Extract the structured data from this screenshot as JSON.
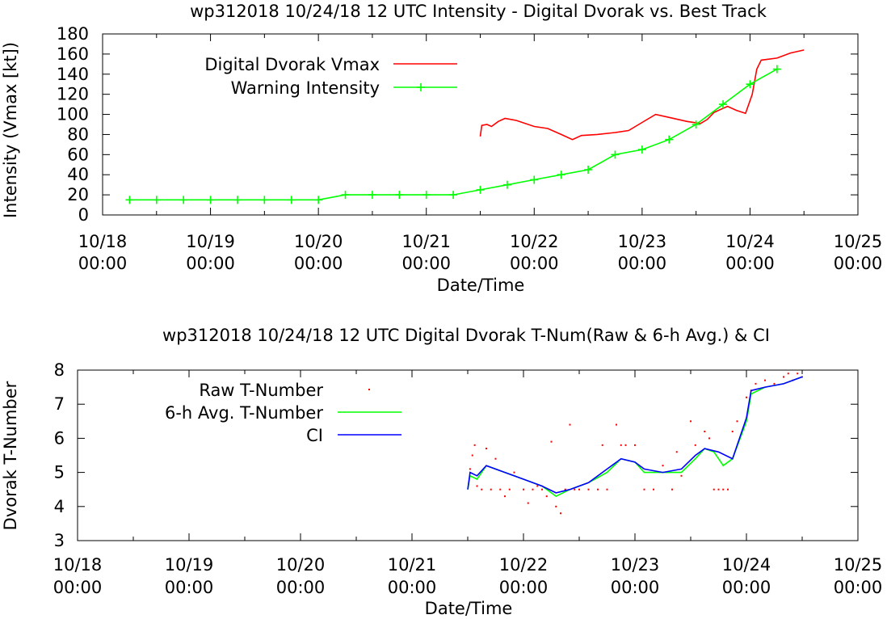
{
  "chart_data": [
    {
      "type": "line",
      "title": "wp312018 10/24/18  12 UTC Intensity - Digital Dvorak vs. Best Track",
      "xlabel": "Date/Time",
      "ylabel": "Intensity (Vmax [kt])",
      "xlim": [
        "2018-10-18T00:00",
        "2018-10-25T00:00"
      ],
      "ylim": [
        0,
        180
      ],
      "yticks": [
        0,
        20,
        40,
        60,
        80,
        100,
        120,
        140,
        160,
        180
      ],
      "xticks": [
        {
          "date": "2018-10-18T00:00",
          "line1": "10/18",
          "line2": "00:00"
        },
        {
          "date": "2018-10-19T00:00",
          "line1": "10/19",
          "line2": "00:00"
        },
        {
          "date": "2018-10-20T00:00",
          "line1": "10/20",
          "line2": "00:00"
        },
        {
          "date": "2018-10-21T00:00",
          "line1": "10/21",
          "line2": "00:00"
        },
        {
          "date": "2018-10-22T00:00",
          "line1": "10/22",
          "line2": "00:00"
        },
        {
          "date": "2018-10-23T00:00",
          "line1": "10/23",
          "line2": "00:00"
        },
        {
          "date": "2018-10-24T00:00",
          "line1": "10/24",
          "line2": "00:00"
        },
        {
          "date": "2018-10-25T00:00",
          "line1": "10/25",
          "line2": "00:00"
        }
      ],
      "grid": false,
      "legend_position": "top-left",
      "series": [
        {
          "name": "Digital Dvorak Vmax",
          "color": "#ff0000",
          "markers": false,
          "points": [
            [
              "2018-10-21T12:00",
              78
            ],
            [
              "2018-10-21T12:20",
              89
            ],
            [
              "2018-10-21T13:30",
              90
            ],
            [
              "2018-10-21T14:30",
              88
            ],
            [
              "2018-10-21T16:00",
              93
            ],
            [
              "2018-10-21T17:30",
              96
            ],
            [
              "2018-10-21T20:00",
              94
            ],
            [
              "2018-10-22T00:00",
              88
            ],
            [
              "2018-10-22T03:00",
              86
            ],
            [
              "2018-10-22T06:00",
              80
            ],
            [
              "2018-10-22T08:30",
              75
            ],
            [
              "2018-10-22T10:30",
              79
            ],
            [
              "2018-10-22T14:00",
              80
            ],
            [
              "2018-10-22T18:00",
              82
            ],
            [
              "2018-10-22T21:00",
              84
            ],
            [
              "2018-10-23T00:00",
              92
            ],
            [
              "2018-10-23T03:00",
              100
            ],
            [
              "2018-10-23T06:00",
              97
            ],
            [
              "2018-10-23T10:00",
              93
            ],
            [
              "2018-10-23T13:00",
              91
            ],
            [
              "2018-10-23T14:30",
              95
            ],
            [
              "2018-10-23T16:00",
              102
            ],
            [
              "2018-10-23T19:00",
              108
            ],
            [
              "2018-10-23T21:00",
              104
            ],
            [
              "2018-10-23T23:00",
              101
            ],
            [
              "2018-10-24T00:30",
              120
            ],
            [
              "2018-10-24T01:30",
              145
            ],
            [
              "2018-10-24T02:30",
              154
            ],
            [
              "2018-10-24T06:00",
              156
            ],
            [
              "2018-10-24T09:00",
              161
            ],
            [
              "2018-10-24T12:00",
              164
            ]
          ]
        },
        {
          "name": "Warning Intensity",
          "color": "#00ff00",
          "markers": true,
          "points": [
            [
              "2018-10-18T06:00",
              15
            ],
            [
              "2018-10-18T12:00",
              15
            ],
            [
              "2018-10-18T18:00",
              15
            ],
            [
              "2018-10-19T00:00",
              15
            ],
            [
              "2018-10-19T06:00",
              15
            ],
            [
              "2018-10-19T12:00",
              15
            ],
            [
              "2018-10-19T18:00",
              15
            ],
            [
              "2018-10-20T00:00",
              15
            ],
            [
              "2018-10-20T06:00",
              20
            ],
            [
              "2018-10-20T12:00",
              20
            ],
            [
              "2018-10-20T18:00",
              20
            ],
            [
              "2018-10-21T00:00",
              20
            ],
            [
              "2018-10-21T06:00",
              20
            ],
            [
              "2018-10-21T12:00",
              25
            ],
            [
              "2018-10-21T18:00",
              30
            ],
            [
              "2018-10-22T00:00",
              35
            ],
            [
              "2018-10-22T06:00",
              40
            ],
            [
              "2018-10-22T12:00",
              45
            ],
            [
              "2018-10-22T18:00",
              60
            ],
            [
              "2018-10-23T00:00",
              65
            ],
            [
              "2018-10-23T06:00",
              75
            ],
            [
              "2018-10-23T12:00",
              90
            ],
            [
              "2018-10-23T18:00",
              110
            ],
            [
              "2018-10-24T00:00",
              130
            ],
            [
              "2018-10-24T06:00",
              145
            ]
          ]
        }
      ]
    },
    {
      "type": "line",
      "title": "wp312018 10/24/18  12 UTC Digital Dvorak T-Num(Raw & 6-h Avg.) & CI",
      "xlabel": "Date/Time",
      "ylabel": "Dvorak T-Number",
      "xlim": [
        "2018-10-18T00:00",
        "2018-10-25T00:00"
      ],
      "ylim": [
        3,
        8
      ],
      "yticks": [
        3,
        4,
        5,
        6,
        7,
        8
      ],
      "xticks": [
        {
          "date": "2018-10-18T00:00",
          "line1": "10/18",
          "line2": "00:00"
        },
        {
          "date": "2018-10-19T00:00",
          "line1": "10/19",
          "line2": "00:00"
        },
        {
          "date": "2018-10-20T00:00",
          "line1": "10/20",
          "line2": "00:00"
        },
        {
          "date": "2018-10-21T00:00",
          "line1": "10/21",
          "line2": "00:00"
        },
        {
          "date": "2018-10-22T00:00",
          "line1": "10/22",
          "line2": "00:00"
        },
        {
          "date": "2018-10-23T00:00",
          "line1": "10/23",
          "line2": "00:00"
        },
        {
          "date": "2018-10-24T00:00",
          "line1": "10/24",
          "line2": "00:00"
        },
        {
          "date": "2018-10-25T00:00",
          "line1": "10/25",
          "line2": "00:00"
        }
      ],
      "grid": false,
      "legend_position": "top-left",
      "series": [
        {
          "name": "Raw T-Number",
          "type": "scatter",
          "color": "#ff0000",
          "points": [
            [
              "2018-10-21T12:30",
              5.1
            ],
            [
              "2018-10-21T13:00",
              5.5
            ],
            [
              "2018-10-21T13:30",
              5.8
            ],
            [
              "2018-10-21T14:00",
              4.6
            ],
            [
              "2018-10-21T15:00",
              4.5
            ],
            [
              "2018-10-21T16:00",
              5.7
            ],
            [
              "2018-10-21T17:00",
              4.5
            ],
            [
              "2018-10-21T18:00",
              5.4
            ],
            [
              "2018-10-21T19:00",
              4.5
            ],
            [
              "2018-10-21T20:00",
              4.3
            ],
            [
              "2018-10-21T21:00",
              4.5
            ],
            [
              "2018-10-21T22:00",
              5.0
            ],
            [
              "2018-10-22T00:00",
              4.5
            ],
            [
              "2018-10-22T01:00",
              4.1
            ],
            [
              "2018-10-22T02:00",
              4.5
            ],
            [
              "2018-10-22T03:00",
              4.6
            ],
            [
              "2018-10-22T04:00",
              4.5
            ],
            [
              "2018-10-22T05:00",
              4.3
            ],
            [
              "2018-10-22T06:00",
              5.9
            ],
            [
              "2018-10-22T07:00",
              4.0
            ],
            [
              "2018-10-22T08:00",
              3.8
            ],
            [
              "2018-10-22T09:00",
              4.5
            ],
            [
              "2018-10-22T10:00",
              6.4
            ],
            [
              "2018-10-22T11:00",
              4.5
            ],
            [
              "2018-10-22T12:00",
              4.5
            ],
            [
              "2018-10-22T14:00",
              4.5
            ],
            [
              "2018-10-22T16:00",
              4.5
            ],
            [
              "2018-10-22T17:00",
              5.8
            ],
            [
              "2018-10-22T18:00",
              4.5
            ],
            [
              "2018-10-22T20:00",
              6.4
            ],
            [
              "2018-10-22T21:00",
              5.8
            ],
            [
              "2018-10-22T22:00",
              5.8
            ],
            [
              "2018-10-23T00:00",
              5.8
            ],
            [
              "2018-10-23T02:00",
              4.5
            ],
            [
              "2018-10-23T04:00",
              4.5
            ],
            [
              "2018-10-23T06:00",
              5.2
            ],
            [
              "2018-10-23T08:00",
              4.5
            ],
            [
              "2018-10-23T09:00",
              5.6
            ],
            [
              "2018-10-23T10:00",
              4.9
            ],
            [
              "2018-10-23T12:00",
              6.5
            ],
            [
              "2018-10-23T13:00",
              5.8
            ],
            [
              "2018-10-23T15:00",
              6.2
            ],
            [
              "2018-10-23T16:00",
              6.0
            ],
            [
              "2018-10-23T17:00",
              4.5
            ],
            [
              "2018-10-23T18:00",
              4.5
            ],
            [
              "2018-10-23T19:00",
              4.5
            ],
            [
              "2018-10-23T20:00",
              4.5
            ],
            [
              "2018-10-23T21:00",
              6.2
            ],
            [
              "2018-10-23T22:00",
              6.5
            ],
            [
              "2018-10-24T00:00",
              7.2
            ],
            [
              "2018-10-24T01:00",
              7.4
            ],
            [
              "2018-10-24T02:00",
              7.6
            ],
            [
              "2018-10-24T04:00",
              7.7
            ],
            [
              "2018-10-24T06:00",
              7.6
            ],
            [
              "2018-10-24T08:00",
              7.8
            ],
            [
              "2018-10-24T09:00",
              7.9
            ],
            [
              "2018-10-24T10:00",
              7.7
            ],
            [
              "2018-10-24T11:00",
              7.9
            ],
            [
              "2018-10-24T12:00",
              7.8
            ]
          ]
        },
        {
          "name": "6-h Avg. T-Number",
          "color": "#00ff00",
          "points": [
            [
              "2018-10-21T12:00",
              4.5
            ],
            [
              "2018-10-21T12:30",
              4.9
            ],
            [
              "2018-10-21T14:00",
              4.8
            ],
            [
              "2018-10-21T16:00",
              5.2
            ],
            [
              "2018-10-21T20:00",
              5.0
            ],
            [
              "2018-10-22T00:00",
              4.8
            ],
            [
              "2018-10-22T04:00",
              4.6
            ],
            [
              "2018-10-22T07:00",
              4.3
            ],
            [
              "2018-10-22T10:00",
              4.5
            ],
            [
              "2018-10-22T14:00",
              4.7
            ],
            [
              "2018-10-22T18:00",
              5.0
            ],
            [
              "2018-10-22T21:00",
              5.4
            ],
            [
              "2018-10-23T00:00",
              5.3
            ],
            [
              "2018-10-23T02:00",
              5.0
            ],
            [
              "2018-10-23T06:00",
              5.0
            ],
            [
              "2018-10-23T10:00",
              5.0
            ],
            [
              "2018-10-23T13:00",
              5.4
            ],
            [
              "2018-10-23T15:00",
              5.7
            ],
            [
              "2018-10-23T17:00",
              5.6
            ],
            [
              "2018-10-23T19:00",
              5.2
            ],
            [
              "2018-10-23T21:00",
              5.4
            ],
            [
              "2018-10-24T00:00",
              6.5
            ],
            [
              "2018-10-24T01:00",
              7.3
            ],
            [
              "2018-10-24T04:00",
              7.5
            ],
            [
              "2018-10-24T08:00",
              7.6
            ],
            [
              "2018-10-24T12:00",
              7.8
            ]
          ]
        },
        {
          "name": "CI",
          "color": "#0000ff",
          "points": [
            [
              "2018-10-21T12:00",
              4.5
            ],
            [
              "2018-10-21T12:30",
              5.0
            ],
            [
              "2018-10-21T14:00",
              4.9
            ],
            [
              "2018-10-21T16:00",
              5.2
            ],
            [
              "2018-10-21T20:00",
              5.0
            ],
            [
              "2018-10-22T00:00",
              4.8
            ],
            [
              "2018-10-22T04:00",
              4.6
            ],
            [
              "2018-10-22T07:00",
              4.4
            ],
            [
              "2018-10-22T10:00",
              4.5
            ],
            [
              "2018-10-22T14:00",
              4.7
            ],
            [
              "2018-10-22T18:00",
              5.1
            ],
            [
              "2018-10-22T21:00",
              5.4
            ],
            [
              "2018-10-23T00:00",
              5.3
            ],
            [
              "2018-10-23T02:00",
              5.1
            ],
            [
              "2018-10-23T06:00",
              5.0
            ],
            [
              "2018-10-23T10:00",
              5.1
            ],
            [
              "2018-10-23T13:00",
              5.5
            ],
            [
              "2018-10-23T15:00",
              5.7
            ],
            [
              "2018-10-23T18:00",
              5.6
            ],
            [
              "2018-10-23T21:00",
              5.4
            ],
            [
              "2018-10-24T00:00",
              6.6
            ],
            [
              "2018-10-24T01:00",
              7.4
            ],
            [
              "2018-10-24T04:00",
              7.5
            ],
            [
              "2018-10-24T08:00",
              7.6
            ],
            [
              "2018-10-24T12:00",
              7.8
            ]
          ]
        }
      ]
    }
  ]
}
